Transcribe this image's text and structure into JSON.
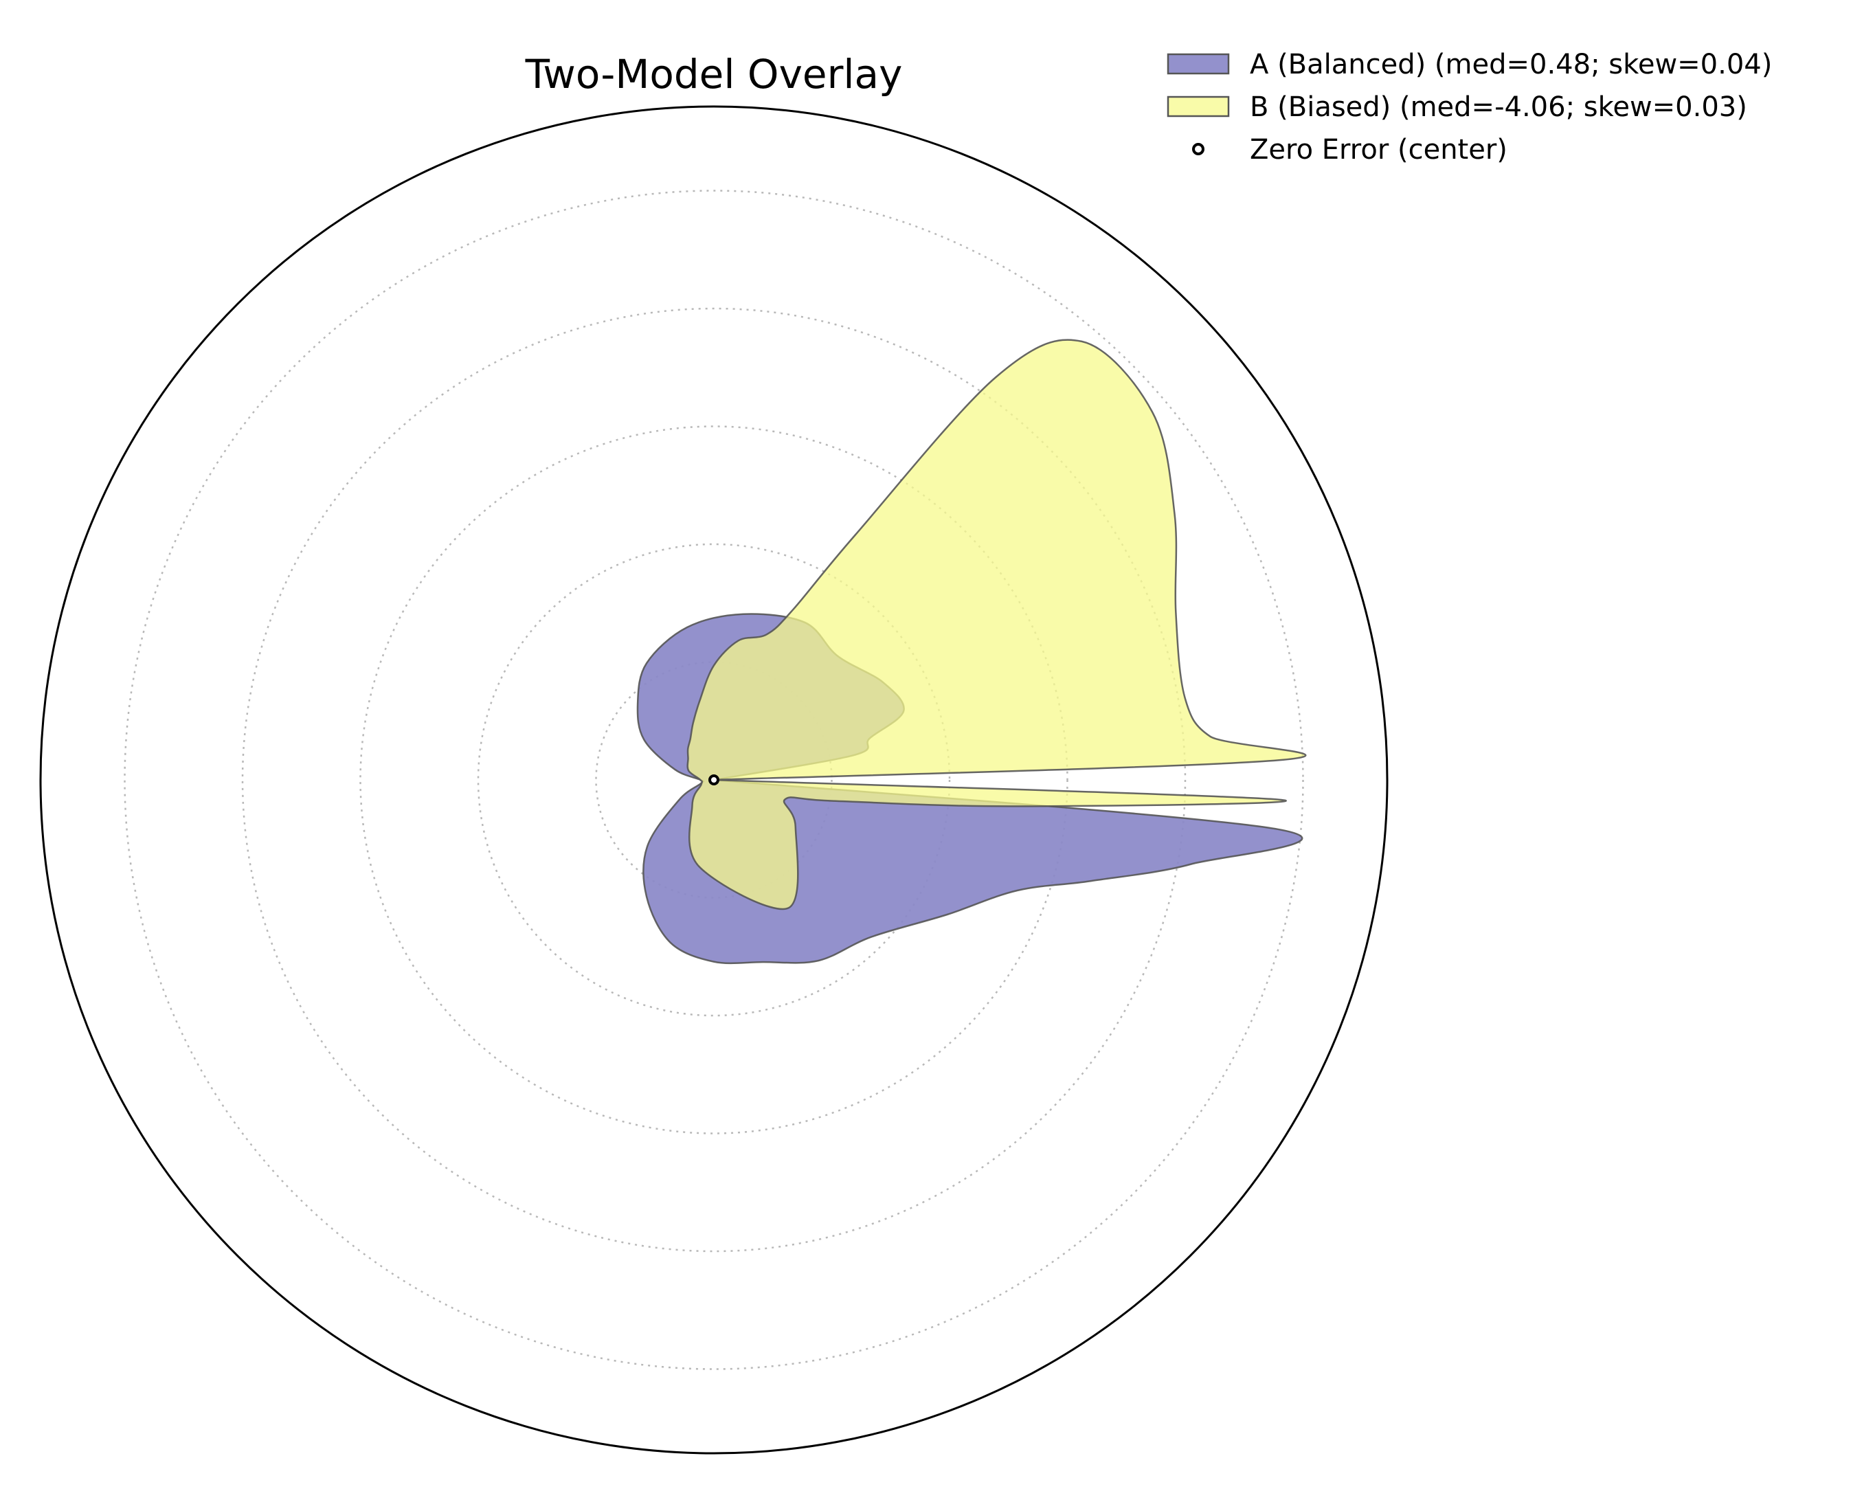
{
  "chart_data": {
    "type": "area",
    "subtype": "polar-density-overlay",
    "title": "Two-Model Overlay",
    "grid": true,
    "legend_position": "top-right",
    "series": [
      {
        "name": "A (Balanced)  (med=0.48; skew=0.04)",
        "color": "#8a88c8",
        "theta_deg": [
          0,
          10,
          15,
          20,
          30,
          45,
          60,
          80,
          100,
          120,
          135,
          150,
          165,
          180,
          195,
          210,
          225,
          240,
          255,
          270,
          285,
          300,
          315,
          330,
          340,
          345,
          350,
          355,
          360
        ],
        "r": [
          0.0,
          0.21,
          0.24,
          0.3,
          0.29,
          0.26,
          0.27,
          0.25,
          0.23,
          0.2,
          0.16,
          0.12,
          0.06,
          0.02,
          0.02,
          0.06,
          0.14,
          0.2,
          0.25,
          0.27,
          0.28,
          0.31,
          0.33,
          0.4,
          0.48,
          0.58,
          0.72,
          0.84,
          0.0
        ]
      },
      {
        "name": "B (Biased)  (med=-4.06; skew=0.03)",
        "color": "#f7fa8c",
        "theta_deg": [
          0,
          2,
          5,
          10,
          20,
          30,
          40,
          50,
          55,
          60,
          65,
          70,
          80,
          90,
          100,
          110,
          120,
          130,
          140,
          160,
          180,
          200,
          230,
          260,
          300,
          330,
          345,
          350,
          355,
          358,
          360
        ],
        "r": [
          0.0,
          0.84,
          0.74,
          0.71,
          0.73,
          0.79,
          0.85,
          0.85,
          0.73,
          0.42,
          0.28,
          0.23,
          0.21,
          0.17,
          0.12,
          0.09,
          0.07,
          0.06,
          0.05,
          0.04,
          0.02,
          0.02,
          0.05,
          0.13,
          0.22,
          0.14,
          0.11,
          0.18,
          0.45,
          0.84,
          0.0
        ]
      },
      {
        "name": "Zero Error (center)",
        "type": "marker",
        "r": [
          0
        ],
        "theta_deg": [
          0
        ]
      }
    ],
    "radial_grid": [
      0.175,
      0.35,
      0.525,
      0.7,
      0.875,
      1.0
    ]
  }
}
